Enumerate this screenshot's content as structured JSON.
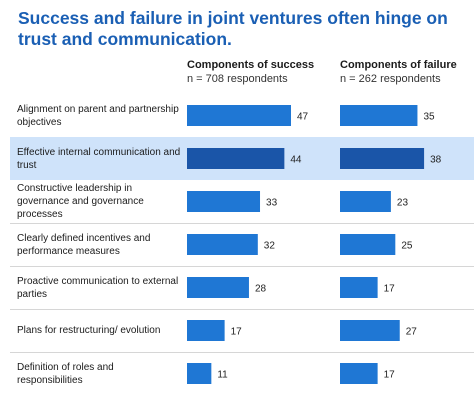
{
  "title": "Success and failure in joint ventures often hinge on trust and communication.",
  "columns": [
    {
      "heading": "Components of success",
      "n": "n = 708 respondents"
    },
    {
      "heading": "Components of failure",
      "n": "n = 262 respondents"
    }
  ],
  "colors": {
    "bar": "#1f77d4",
    "bar_highlight": "#1a55a8",
    "highlight_bg": "#cfe3fa",
    "title": "#1a5fb4"
  },
  "chart_data": {
    "type": "bar",
    "orientation": "horizontal",
    "title": "Success and failure in joint ventures often hinge on trust and communication.",
    "categories": [
      "Alignment on parent and partnership objectives",
      "Effective internal communication and trust",
      "Constructive leadership in governance and governance processes",
      "Clearly defined incentives and performance measures",
      "Proactive communication to external parties",
      "Plans for restructuring/ evolution",
      "Definition of roles and responsibilities"
    ],
    "series": [
      {
        "name": "Components of success",
        "values": [
          47,
          44,
          33,
          32,
          28,
          17,
          11
        ]
      },
      {
        "name": "Components of failure",
        "values": [
          35,
          38,
          23,
          25,
          17,
          27,
          17
        ]
      }
    ],
    "highlighted_category": "Effective internal communication and trust"
  }
}
